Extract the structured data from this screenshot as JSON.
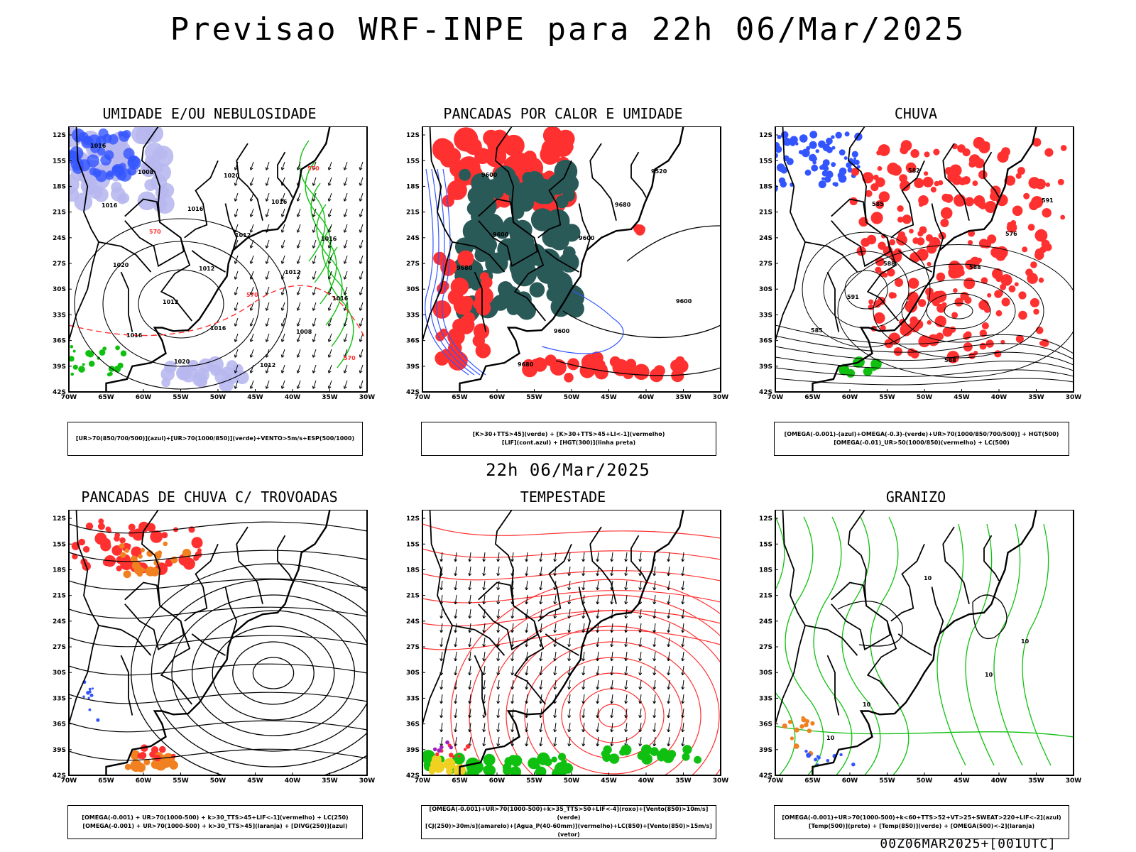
{
  "main_title": "Previsao WRF-INPE  para 22h 06/Mar/2025",
  "mid_title": "22h 06/Mar/2025",
  "run_label": "00Z06MAR2025+[001UTC]",
  "lat_ticks": [
    "12S",
    "15S",
    "18S",
    "21S",
    "24S",
    "27S",
    "30S",
    "33S",
    "36S",
    "39S",
    "42S"
  ],
  "lon_ticks": [
    "70W",
    "65W",
    "60W",
    "55W",
    "50W",
    "45W",
    "40W",
    "35W",
    "30W"
  ],
  "colors": {
    "blue": "#3355ff",
    "lavender": "#b8b8f0",
    "green": "#10c010",
    "red": "#ff3030",
    "darkteal": "#2a5a58",
    "orange": "#f08020",
    "yellow": "#f0d020",
    "purple": "#a020c0"
  },
  "panels": [
    {
      "title": "UMIDADE E/OU NEBULOSIDADE",
      "legend_lines": [
        "[UR>70(850/700/500)](azul)+[UR>70(1000/850)](verde)+VENTO>5m/s+ESP(500/1000)"
      ],
      "contour_labels": [
        "1016",
        "1016",
        "1012",
        "1016",
        "1020",
        "1016",
        "1012",
        "1012",
        "1016",
        "1012",
        "1008",
        "1008",
        "1012",
        "1016",
        "1020",
        "1016",
        "1020",
        "1016",
        "570",
        "570",
        "570",
        "570"
      ]
    },
    {
      "title": "PANCADAS POR CALOR E UMIDADE",
      "legend_lines": [
        "[K>30+TTS>45](verde) + [K>30+TTS>45+LI<-1](vermelho)",
        "[LIF](cont.azul) + [HGT(300)](linha preta)"
      ],
      "contour_labels": [
        "9600",
        "9600",
        "9600",
        "9680",
        "9680",
        "9680",
        "9600",
        "9520",
        "9600"
      ]
    },
    {
      "title": "CHUVA",
      "legend_lines": [
        "[OMEGA(-0.001)-(azul)+OMEGA(-0.3)-(verde)+UR>70(1000/850/700/500)] + HGT(500)",
        "[OMEGA(-0.01)_UR>50(1000/850)(vermelho) + LC(500)"
      ],
      "contour_labels": [
        "585",
        "588",
        "585",
        "582",
        "576",
        "591",
        "588",
        "591",
        "588"
      ]
    },
    {
      "title": "PANCADAS DE CHUVA C/ TROVOADAS",
      "legend_lines": [
        "[OMEGA(-0.001) + UR>70(1000-500) + k>30_TTS>45+LIF<-1](vermelho) + LC(250)",
        "[OMEGA(-0.001) + UR>70(1000-500) + k>30_TTS>45](laranja) + [DIVG(250)](azul)"
      ],
      "contour_labels": []
    },
    {
      "title": "TEMPESTADE",
      "legend_lines": [
        "[OMEGA(-0.001)+UR>70(1000-500)+k>35_TTS>50+LIF<-4](roxo)+[Vento(850)>10m/s](verde)",
        "[CJ(250)>30m/s](amarelo)+[Agua_P(40-60mm)](vermelho)+LC(850)+[Vento(850)>15m/s](vetor)"
      ],
      "contour_labels": []
    },
    {
      "title": "GRANIZO",
      "legend_lines": [
        "[OMEGA(-0.001)+UR>70(1000-500)+k<60+TTS>52+VT>25+SWEAT>220+LIF<-2](azul)",
        "[Temp(500)](preto) + [Temp(850)](verde) + [OMEGA(500)<-2](laranja)"
      ],
      "contour_labels": [
        "10",
        "10",
        "10",
        "10",
        "10"
      ]
    }
  ]
}
